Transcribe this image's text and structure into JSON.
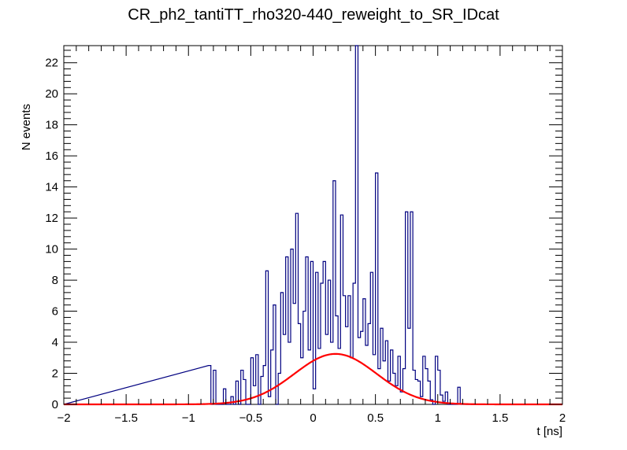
{
  "chart_data": {
    "type": "histogram",
    "title": "CR_ph2_tantiTT_rho320-440_reweight_to_SR_IDcat",
    "xlabel": "t [ns]",
    "ylabel": "N events",
    "xlim": [
      -2,
      2
    ],
    "ylim": [
      0,
      23.1
    ],
    "x_ticks": [
      -2,
      -1.5,
      -1,
      -0.5,
      0,
      0.5,
      1,
      1.5,
      2
    ],
    "x_tick_labels": [
      "−2",
      "−1.5",
      "−1",
      "−0.5",
      "0",
      "0.5",
      "1",
      "1.5",
      "2"
    ],
    "y_ticks": [
      0,
      2,
      4,
      6,
      8,
      10,
      12,
      14,
      16,
      18,
      20,
      22
    ],
    "y_tick_labels": [
      "0",
      "2",
      "4",
      "6",
      "8",
      "10",
      "12",
      "14",
      "16",
      "18",
      "20",
      "22"
    ],
    "bin_width": 0.02,
    "histogram": {
      "name": "data",
      "color": "#000080",
      "bin_low_edges": [
        -0.84,
        -0.82,
        -0.8,
        -0.78,
        -0.76,
        -0.74,
        -0.72,
        -0.7,
        -0.68,
        -0.66,
        -0.64,
        -0.62,
        -0.6,
        -0.58,
        -0.56,
        -0.54,
        -0.52,
        -0.5,
        -0.48,
        -0.46,
        -0.44,
        -0.42,
        -0.4,
        -0.38,
        -0.36,
        -0.34,
        -0.32,
        -0.3,
        -0.28,
        -0.26,
        -0.24,
        -0.22,
        -0.2,
        -0.18,
        -0.16,
        -0.14,
        -0.12,
        -0.1,
        -0.08,
        -0.06,
        -0.04,
        -0.02,
        0.0,
        0.02,
        0.04,
        0.06,
        0.08,
        0.1,
        0.12,
        0.14,
        0.16,
        0.18,
        0.2,
        0.22,
        0.24,
        0.26,
        0.28,
        0.3,
        0.32,
        0.34,
        0.36,
        0.38,
        0.4,
        0.42,
        0.44,
        0.46,
        0.48,
        0.5,
        0.52,
        0.54,
        0.56,
        0.58,
        0.6,
        0.62,
        0.64,
        0.66,
        0.68,
        0.7,
        0.72,
        0.74,
        0.76,
        0.78,
        0.8,
        0.82,
        0.84,
        0.86,
        0.88,
        0.9,
        0.92,
        0.94,
        0.96,
        0.98,
        1.0,
        1.02,
        1.04,
        1.06,
        1.08,
        1.1,
        1.12,
        1.14,
        1.16,
        1.18
      ],
      "values": [
        2.5,
        0,
        2.2,
        0,
        0,
        0,
        1.0,
        0,
        0,
        0.5,
        0,
        1.5,
        0,
        2.2,
        1.6,
        0,
        0,
        3.0,
        1.2,
        3.2,
        0,
        1.8,
        2.5,
        8.6,
        0.5,
        3.5,
        6.4,
        0,
        2.0,
        7.2,
        4.5,
        9.5,
        4.0,
        10.0,
        6.5,
        12.3,
        5.2,
        3.0,
        6.0,
        9.5,
        3.5,
        9.2,
        1.0,
        8.5,
        3.6,
        7.8,
        9.2,
        4.5,
        8.0,
        4.0,
        14.4,
        5.7,
        3.6,
        12.2,
        7.0,
        5.0,
        7.0,
        3.0,
        7.8,
        23.1,
        4.3,
        4.7,
        6.8,
        3.8,
        5.2,
        8.5,
        3.2,
        14.9,
        2.3,
        4.9,
        2.8,
        4.1,
        1.5,
        3.5,
        2.0,
        1.2,
        3.1,
        0.8,
        2.3,
        12.4,
        4.9,
        12.4,
        2.2,
        1.6,
        1.5,
        0.5,
        3.1,
        2.3,
        1.5,
        0.3,
        0,
        3.1,
        2.2,
        0.6,
        0.2,
        0.8,
        0,
        0,
        0,
        0,
        1.1,
        0
      ]
    },
    "fit": {
      "name": "gaussian fit",
      "color": "#ff0000",
      "function": "gaus",
      "amplitude": 3.25,
      "mean": 0.18,
      "sigma": 0.33
    }
  }
}
